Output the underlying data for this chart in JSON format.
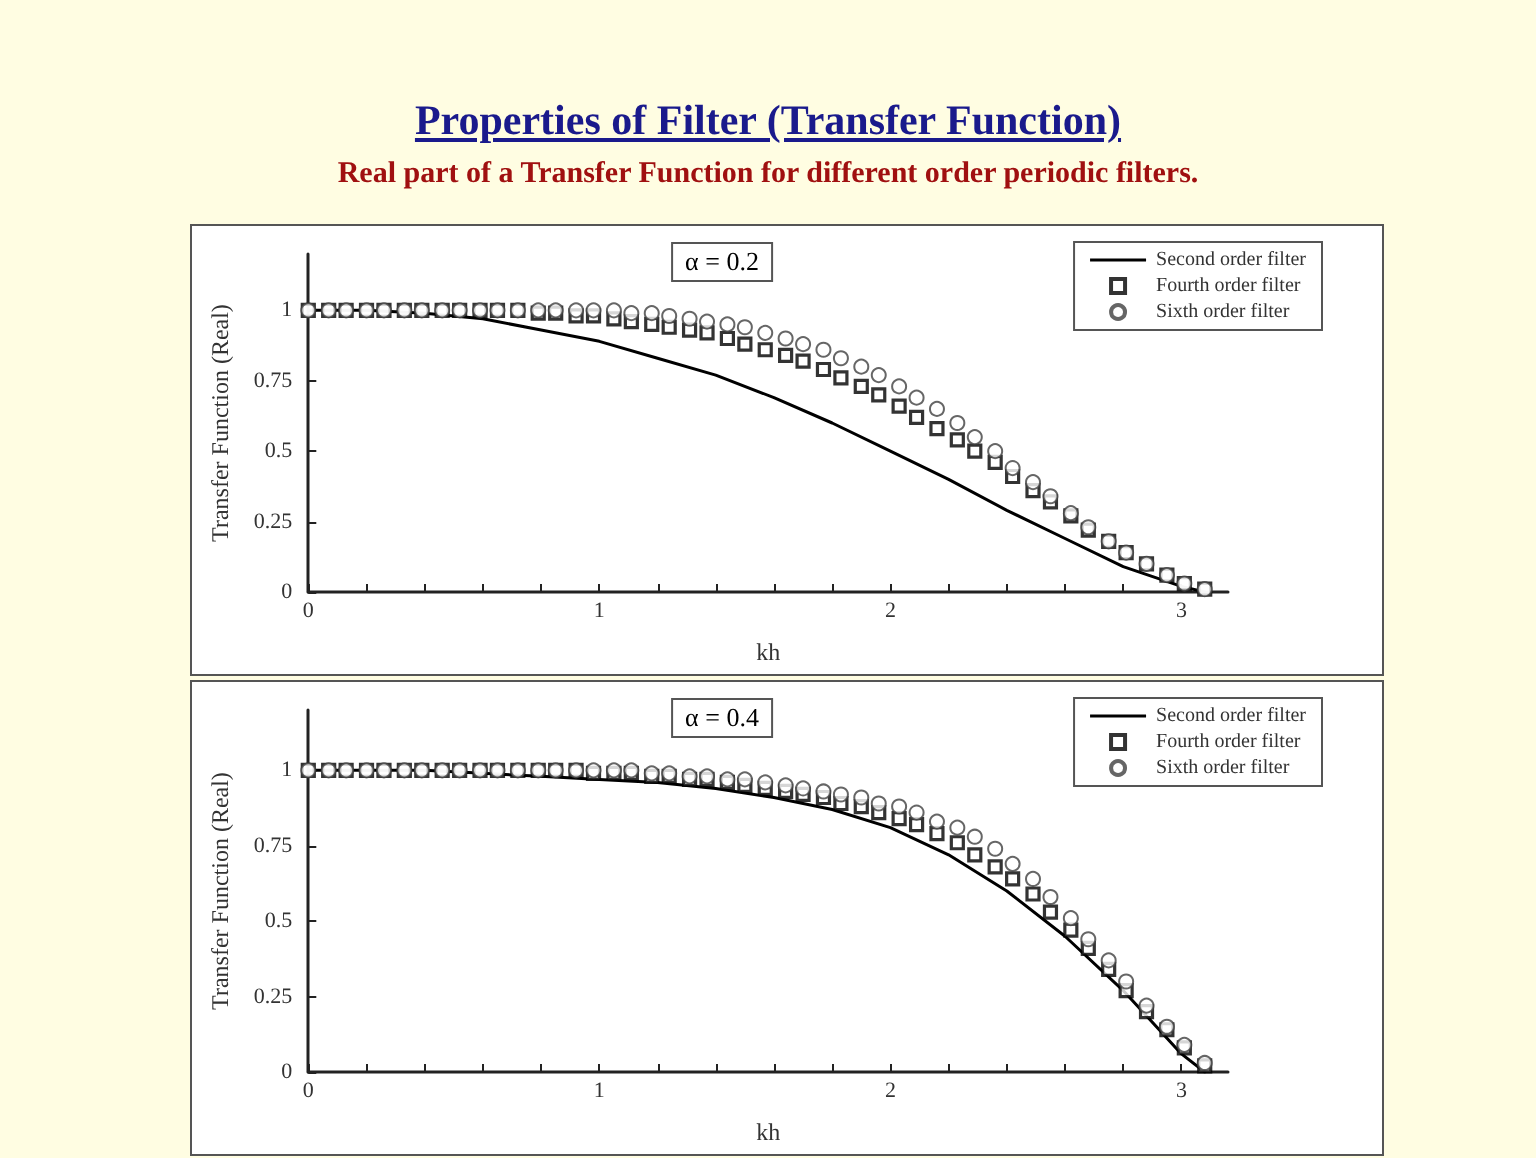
{
  "chart_data": [
    {
      "type": "line",
      "title": "Properties of Filter (Transfer Function)",
      "subtitle": "Real part of a Transfer Function for different order periodic filters.",
      "xlabel": "kh",
      "ylabel": "Transfer Function (Real)",
      "annotations": [
        "α = 0.2"
      ],
      "legend": "top right",
      "xlim": [
        0,
        3.16
      ],
      "ylim": [
        0,
        1.2
      ],
      "xticks": [
        0,
        {
          "value": 0.2,
          "label": null
        },
        {
          "value": 0.4,
          "label": null
        },
        {
          "value": 0.6,
          "label": null
        },
        {
          "value": 0.8,
          "label": null
        },
        1,
        {
          "value": 1.2,
          "label": null
        },
        {
          "value": 1.4,
          "label": null
        },
        {
          "value": 1.6,
          "label": null
        },
        {
          "value": 1.8,
          "label": null
        },
        2,
        {
          "value": 2.2,
          "label": null
        },
        {
          "value": 2.4,
          "label": null
        },
        {
          "value": 2.6,
          "label": null
        },
        {
          "value": 2.8,
          "label": null
        },
        3
      ],
      "yticks": [
        0,
        0.25,
        0.5,
        0.75,
        1
      ],
      "series": [
        {
          "name": "Second order filter",
          "type": "line",
          "marker": "none",
          "line_style": "solid",
          "color": "#000000",
          "x": [
            0,
            0.2,
            0.4,
            0.6,
            0.8,
            1,
            1.2,
            1.4,
            1.6,
            1.8,
            2,
            2.2,
            2.4,
            2.6,
            2.8,
            3,
            3.08
          ],
          "values": [
            1,
            1,
            0.99,
            0.97,
            0.93,
            0.89,
            0.83,
            0.77,
            0.69,
            0.6,
            0.5,
            0.4,
            0.29,
            0.19,
            0.09,
            0.02,
            0
          ]
        },
        {
          "name": "Fourth order filter",
          "type": "scatter",
          "marker": "square",
          "color": "#000000",
          "x": [
            0,
            0.07,
            0.13,
            0.2,
            0.26,
            0.33,
            0.39,
            0.46,
            0.52,
            0.59,
            0.65,
            0.72,
            0.79,
            0.85,
            0.92,
            0.98,
            1.05,
            1.11,
            1.18,
            1.24,
            1.31,
            1.37,
            1.44,
            1.5,
            1.57,
            1.64,
            1.7,
            1.77,
            1.83,
            1.9,
            1.96,
            2.03,
            2.09,
            2.16,
            2.23,
            2.29,
            2.36,
            2.42,
            2.49,
            2.55,
            2.62,
            2.68,
            2.75,
            2.81,
            2.88,
            2.95,
            3.01,
            3.08
          ],
          "values": [
            1,
            1,
            1,
            1,
            1,
            1,
            1,
            1,
            1,
            1,
            1,
            1,
            0.99,
            0.99,
            0.98,
            0.98,
            0.97,
            0.96,
            0.95,
            0.94,
            0.93,
            0.92,
            0.9,
            0.88,
            0.86,
            0.84,
            0.82,
            0.79,
            0.76,
            0.73,
            0.7,
            0.66,
            0.62,
            0.58,
            0.54,
            0.5,
            0.46,
            0.41,
            0.36,
            0.32,
            0.27,
            0.22,
            0.18,
            0.14,
            0.1,
            0.06,
            0.03,
            0.01
          ]
        },
        {
          "name": "Sixth order filter",
          "type": "scatter",
          "marker": "circle",
          "color": "#404040",
          "x": [
            0,
            0.07,
            0.13,
            0.2,
            0.26,
            0.33,
            0.39,
            0.46,
            0.52,
            0.59,
            0.65,
            0.72,
            0.79,
            0.85,
            0.92,
            0.98,
            1.05,
            1.11,
            1.18,
            1.24,
            1.31,
            1.37,
            1.44,
            1.5,
            1.57,
            1.64,
            1.7,
            1.77,
            1.83,
            1.9,
            1.96,
            2.03,
            2.09,
            2.16,
            2.23,
            2.29,
            2.36,
            2.42,
            2.49,
            2.55,
            2.62,
            2.68,
            2.75,
            2.81,
            2.88,
            2.95,
            3.01,
            3.08
          ],
          "values": [
            1,
            1,
            1,
            1,
            1,
            1,
            1,
            1,
            1,
            1,
            1,
            1,
            1,
            1,
            1,
            1,
            1,
            0.99,
            0.99,
            0.98,
            0.97,
            0.96,
            0.95,
            0.94,
            0.92,
            0.9,
            0.88,
            0.86,
            0.83,
            0.8,
            0.77,
            0.73,
            0.69,
            0.65,
            0.6,
            0.55,
            0.5,
            0.44,
            0.39,
            0.34,
            0.28,
            0.23,
            0.18,
            0.14,
            0.1,
            0.06,
            0.03,
            0.01
          ]
        }
      ]
    },
    {
      "type": "line",
      "xlabel": "kh",
      "ylabel": "Transfer Function (Real)",
      "annotations": [
        "α = 0.4"
      ],
      "legend": "top right",
      "xlim": [
        0,
        3.16
      ],
      "ylim": [
        0,
        1.2
      ],
      "xticks": [
        0,
        {
          "value": 0.2,
          "label": null
        },
        {
          "value": 0.4,
          "label": null
        },
        {
          "value": 0.6,
          "label": null
        },
        {
          "value": 0.8,
          "label": null
        },
        1,
        {
          "value": 1.2,
          "label": null
        },
        {
          "value": 1.4,
          "label": null
        },
        {
          "value": 1.6,
          "label": null
        },
        {
          "value": 1.8,
          "label": null
        },
        2,
        {
          "value": 2.2,
          "label": null
        },
        {
          "value": 2.4,
          "label": null
        },
        {
          "value": 2.6,
          "label": null
        },
        {
          "value": 2.8,
          "label": null
        },
        3
      ],
      "yticks": [
        0,
        0.25,
        0.5,
        0.75,
        1
      ],
      "series": [
        {
          "name": "Second order filter",
          "type": "line",
          "marker": "none",
          "line_style": "solid",
          "color": "#000000",
          "x": [
            0,
            0.2,
            0.4,
            0.6,
            0.8,
            1,
            1.2,
            1.4,
            1.6,
            1.8,
            2,
            2.2,
            2.4,
            2.6,
            2.8,
            3,
            3.08
          ],
          "values": [
            1,
            1,
            1,
            0.99,
            0.98,
            0.97,
            0.96,
            0.94,
            0.91,
            0.87,
            0.81,
            0.72,
            0.6,
            0.45,
            0.27,
            0.06,
            0
          ]
        },
        {
          "name": "Fourth order filter",
          "type": "scatter",
          "marker": "square",
          "color": "#000000",
          "x": [
            0,
            0.07,
            0.13,
            0.2,
            0.26,
            0.33,
            0.39,
            0.46,
            0.52,
            0.59,
            0.65,
            0.72,
            0.79,
            0.85,
            0.92,
            0.98,
            1.05,
            1.11,
            1.18,
            1.24,
            1.31,
            1.37,
            1.44,
            1.5,
            1.57,
            1.64,
            1.7,
            1.77,
            1.83,
            1.9,
            1.96,
            2.03,
            2.09,
            2.16,
            2.23,
            2.29,
            2.36,
            2.42,
            2.49,
            2.55,
            2.62,
            2.68,
            2.75,
            2.81,
            2.88,
            2.95,
            3.01,
            3.08
          ],
          "values": [
            1,
            1,
            1,
            1,
            1,
            1,
            1,
            1,
            1,
            1,
            1,
            1,
            1,
            1,
            1,
            0.99,
            0.99,
            0.99,
            0.98,
            0.98,
            0.97,
            0.97,
            0.96,
            0.95,
            0.94,
            0.93,
            0.92,
            0.91,
            0.89,
            0.88,
            0.86,
            0.84,
            0.82,
            0.79,
            0.76,
            0.72,
            0.68,
            0.64,
            0.59,
            0.53,
            0.47,
            0.41,
            0.34,
            0.27,
            0.2,
            0.14,
            0.08,
            0.02
          ]
        },
        {
          "name": "Sixth order filter",
          "type": "scatter",
          "marker": "circle",
          "color": "#404040",
          "x": [
            0,
            0.07,
            0.13,
            0.2,
            0.26,
            0.33,
            0.39,
            0.46,
            0.52,
            0.59,
            0.65,
            0.72,
            0.79,
            0.85,
            0.92,
            0.98,
            1.05,
            1.11,
            1.18,
            1.24,
            1.31,
            1.37,
            1.44,
            1.5,
            1.57,
            1.64,
            1.7,
            1.77,
            1.83,
            1.9,
            1.96,
            2.03,
            2.09,
            2.16,
            2.23,
            2.29,
            2.36,
            2.42,
            2.49,
            2.55,
            2.62,
            2.68,
            2.75,
            2.81,
            2.88,
            2.95,
            3.01,
            3.08
          ],
          "values": [
            1,
            1,
            1,
            1,
            1,
            1,
            1,
            1,
            1,
            1,
            1,
            1,
            1,
            1,
            1,
            1,
            1,
            1,
            0.99,
            0.99,
            0.98,
            0.98,
            0.97,
            0.97,
            0.96,
            0.95,
            0.94,
            0.93,
            0.92,
            0.91,
            0.89,
            0.88,
            0.86,
            0.83,
            0.81,
            0.78,
            0.74,
            0.69,
            0.64,
            0.58,
            0.51,
            0.44,
            0.37,
            0.3,
            0.22,
            0.15,
            0.09,
            0.03
          ]
        }
      ]
    }
  ]
}
